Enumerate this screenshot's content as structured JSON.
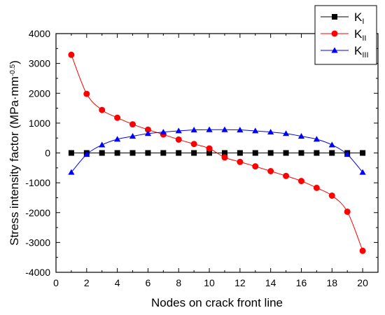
{
  "chart_data": {
    "type": "line",
    "xlabel": "Nodes on crack front line",
    "ylabel_main": "Stress intensity factor (MPa·mm",
    "ylabel_exp": "-0.5",
    "ylabel_close": ")",
    "xlim": [
      0,
      21
    ],
    "ylim": [
      -4000,
      4000
    ],
    "x_ticks": [
      0,
      2,
      4,
      6,
      8,
      10,
      12,
      14,
      16,
      18,
      20
    ],
    "y_ticks": [
      -4000,
      -3000,
      -2000,
      -1000,
      0,
      1000,
      2000,
      3000,
      4000
    ],
    "x": [
      1,
      2,
      3,
      4,
      5,
      6,
      7,
      8,
      9,
      10,
      11,
      12,
      13,
      14,
      15,
      16,
      17,
      18,
      19,
      20
    ],
    "legend_position": "top-right",
    "series": [
      {
        "name": "K",
        "sub": "I",
        "color": "#000000",
        "marker": "square",
        "values": [
          0,
          0,
          0,
          0,
          0,
          0,
          0,
          0,
          0,
          0,
          0,
          0,
          0,
          0,
          0,
          0,
          0,
          0,
          0,
          0
        ]
      },
      {
        "name": "K",
        "sub": "II",
        "color": "#ff0000",
        "marker": "circle",
        "values": [
          3290,
          1980,
          1440,
          1180,
          960,
          780,
          620,
          450,
          300,
          150,
          -150,
          -300,
          -450,
          -610,
          -770,
          -940,
          -1170,
          -1430,
          -1970,
          -3280
        ]
      },
      {
        "name": "K",
        "sub": "III",
        "color": "#0000ff",
        "marker": "triangle",
        "values": [
          -650,
          -50,
          270,
          460,
          560,
          650,
          700,
          740,
          770,
          780,
          780,
          770,
          740,
          700,
          650,
          560,
          460,
          270,
          -50,
          -650
        ]
      }
    ]
  }
}
